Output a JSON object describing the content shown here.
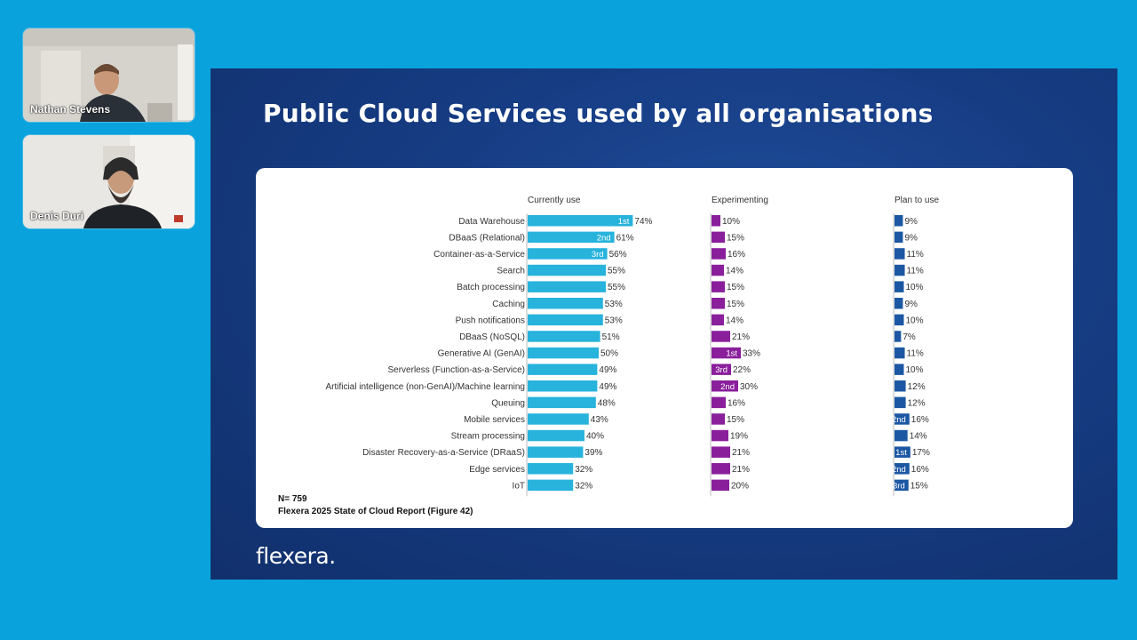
{
  "participants": [
    {
      "name": "Nathan Stevens"
    },
    {
      "name": "Denis Duri"
    }
  ],
  "slide": {
    "title": "Public Cloud Services used by all organisations",
    "logo": "flexera.",
    "footnote_n": "N= 759",
    "footnote_source": "Flexera 2025 State of Cloud Report (Figure 42)"
  },
  "colors": {
    "currently_use": "#27b3dc",
    "experimenting": "#8a1f9c",
    "plan_to_use": "#1c57a3"
  },
  "chart_data": {
    "type": "bar",
    "orientation": "horizontal",
    "categories": [
      "Data Warehouse",
      "DBaaS (Relational)",
      "Container-as-a-Service",
      "Search",
      "Batch processing",
      "Caching",
      "Push notifications",
      "DBaaS (NoSQL)",
      "Generative AI (GenAI)",
      "Serverless (Function-as-a-Service)",
      "Artificial intelligence (non-GenAI)/Machine learning",
      "Queuing",
      "Mobile services",
      "Stream processing",
      "Disaster Recovery-as-a-Service (DRaaS)",
      "Edge services",
      "IoT"
    ],
    "series": [
      {
        "name": "Currently use",
        "values": [
          74,
          61,
          56,
          55,
          55,
          53,
          53,
          51,
          50,
          49,
          49,
          48,
          43,
          40,
          39,
          32,
          32
        ],
        "ranks": [
          "1st",
          "2nd",
          "3rd",
          "",
          "",
          "",
          "",
          "",
          "",
          "",
          "",
          "",
          "",
          "",
          "",
          "",
          ""
        ]
      },
      {
        "name": "Experimenting",
        "values": [
          10,
          15,
          16,
          14,
          15,
          15,
          14,
          21,
          33,
          22,
          30,
          16,
          15,
          19,
          21,
          21,
          20
        ],
        "ranks": [
          "",
          "",
          "",
          "",
          "",
          "",
          "",
          "",
          "1st",
          "3rd",
          "2nd",
          "",
          "",
          "",
          "",
          "",
          ""
        ]
      },
      {
        "name": "Plan to use",
        "values": [
          9,
          9,
          11,
          11,
          10,
          9,
          10,
          7,
          11,
          10,
          12,
          12,
          16,
          14,
          17,
          16,
          15
        ],
        "ranks": [
          "",
          "",
          "",
          "",
          "",
          "",
          "",
          "",
          "",
          "",
          "",
          "",
          "2nd",
          "",
          "1st",
          "2nd",
          "3rd"
        ]
      }
    ],
    "value_suffix": "%"
  }
}
